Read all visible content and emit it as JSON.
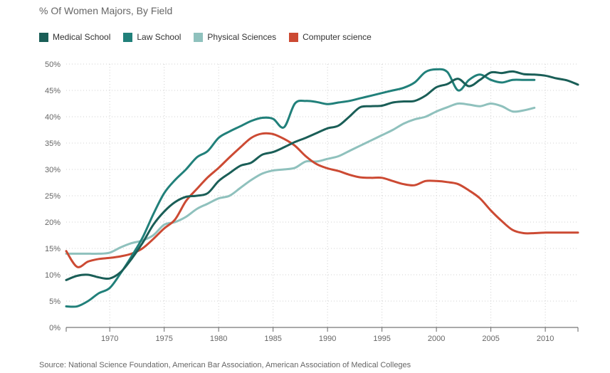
{
  "chart_data": {
    "type": "line",
    "title": "% Of Women Majors, By Field",
    "source": "Source: National Science Foundation, American Bar Association, American Association of Medical Colleges",
    "xlim": [
      1966,
      2013
    ],
    "ylim": [
      0,
      50
    ],
    "xticks": [
      1970,
      1975,
      1980,
      1985,
      1990,
      1995,
      2000,
      2005,
      2010
    ],
    "yticks": [
      0,
      5,
      10,
      15,
      20,
      25,
      30,
      35,
      40,
      45,
      50
    ],
    "ytick_labels": [
      "0%",
      "5%",
      "10%",
      "15%",
      "20%",
      "25%",
      "30%",
      "35%",
      "40%",
      "45%",
      "50%"
    ],
    "grid": true,
    "legend_position": "top-left",
    "series": [
      {
        "name": "Medical School",
        "color": "#1a5e57",
        "x": [
          1966,
          1967,
          1968,
          1969,
          1970,
          1971,
          1972,
          1973,
          1974,
          1975,
          1976,
          1977,
          1978,
          1979,
          1980,
          1981,
          1982,
          1983,
          1984,
          1985,
          1986,
          1987,
          1988,
          1989,
          1990,
          1991,
          1992,
          1993,
          1994,
          1995,
          1996,
          1997,
          1998,
          1999,
          2000,
          2001,
          2002,
          2003,
          2004,
          2005,
          2006,
          2007,
          2008,
          2009,
          2010,
          2011,
          2012,
          2013
        ],
        "values": [
          9,
          9.8,
          10,
          9.5,
          9.3,
          10.5,
          13,
          16,
          19.5,
          22,
          23.8,
          24.8,
          25,
          25.5,
          27.8,
          29.3,
          30.7,
          31.3,
          32.8,
          33.3,
          34.2,
          35.2,
          36,
          36.9,
          37.8,
          38.3,
          40,
          41.8,
          42,
          42.1,
          42.7,
          42.9,
          43,
          44,
          45.6,
          46.2,
          47.2,
          45.8,
          47,
          48.4,
          48.3,
          48.6,
          48.1,
          48,
          47.8,
          47.3,
          46.9,
          46.1
        ]
      },
      {
        "name": "Law School",
        "color": "#21807a",
        "x": [
          1966,
          1967,
          1968,
          1969,
          1970,
          1971,
          1972,
          1973,
          1974,
          1975,
          1976,
          1977,
          1978,
          1979,
          1980,
          1981,
          1982,
          1983,
          1984,
          1985,
          1986,
          1987,
          1988,
          1989,
          1990,
          1991,
          1992,
          1993,
          1994,
          1995,
          1996,
          1997,
          1998,
          1999,
          2000,
          2001,
          2002,
          2003,
          2004,
          2005,
          2006,
          2007,
          2008,
          2009
        ],
        "values": [
          4,
          4,
          5,
          6.5,
          7.5,
          10.3,
          13.5,
          17,
          21.5,
          25.5,
          28,
          30,
          32.3,
          33.5,
          36,
          37.2,
          38.2,
          39.2,
          39.8,
          39.6,
          38,
          42.5,
          43,
          42.8,
          42.4,
          42.7,
          43,
          43.5,
          44,
          44.5,
          45,
          45.5,
          46.5,
          48.5,
          49,
          48.5,
          45,
          47,
          48,
          47,
          46.5,
          47,
          47,
          47
        ]
      },
      {
        "name": "Physical Sciences",
        "color": "#8fc1bd",
        "x": [
          1966,
          1967,
          1968,
          1969,
          1970,
          1971,
          1972,
          1973,
          1974,
          1975,
          1976,
          1977,
          1978,
          1979,
          1980,
          1981,
          1982,
          1983,
          1984,
          1985,
          1986,
          1987,
          1988,
          1989,
          1990,
          1991,
          1992,
          1993,
          1994,
          1995,
          1996,
          1997,
          1998,
          1999,
          2000,
          2001,
          2002,
          2003,
          2004,
          2005,
          2006,
          2007,
          2008,
          2009
        ],
        "values": [
          14,
          14,
          14,
          14,
          14.2,
          15.2,
          16,
          16.5,
          17.5,
          19.5,
          20,
          21,
          22.5,
          23.5,
          24.5,
          25,
          26.5,
          28,
          29.2,
          29.8,
          30,
          30.3,
          31.5,
          31.5,
          32,
          32.5,
          33.5,
          34.5,
          35.5,
          36.5,
          37.5,
          38.7,
          39.5,
          40,
          41,
          41.8,
          42.5,
          42.3,
          42,
          42.5,
          42,
          41,
          41.2,
          41.7
        ]
      },
      {
        "name": "Computer science",
        "color": "#cc4a33",
        "x": [
          1966,
          1967,
          1968,
          1969,
          1970,
          1971,
          1972,
          1973,
          1974,
          1975,
          1976,
          1977,
          1978,
          1979,
          1980,
          1981,
          1982,
          1983,
          1984,
          1985,
          1986,
          1987,
          1988,
          1989,
          1990,
          1991,
          1992,
          1993,
          1994,
          1995,
          1996,
          1997,
          1998,
          1999,
          2000,
          2001,
          2002,
          2003,
          2004,
          2005,
          2006,
          2007,
          2008,
          2009,
          2010,
          2011,
          2012,
          2013
        ],
        "values": [
          14.5,
          11.5,
          12.5,
          13,
          13.2,
          13.5,
          14,
          15,
          16.8,
          18.8,
          20.5,
          24,
          26.3,
          28.5,
          30.3,
          32.3,
          34.2,
          36,
          36.8,
          36.7,
          35.8,
          34.5,
          32.5,
          31,
          30.2,
          29.7,
          29,
          28.5,
          28.4,
          28.4,
          27.8,
          27.2,
          27,
          27.8,
          27.8,
          27.6,
          27.2,
          26,
          24.5,
          22.2,
          20.2,
          18.5,
          17.9,
          17.9,
          18,
          18,
          18,
          18
        ]
      }
    ]
  }
}
